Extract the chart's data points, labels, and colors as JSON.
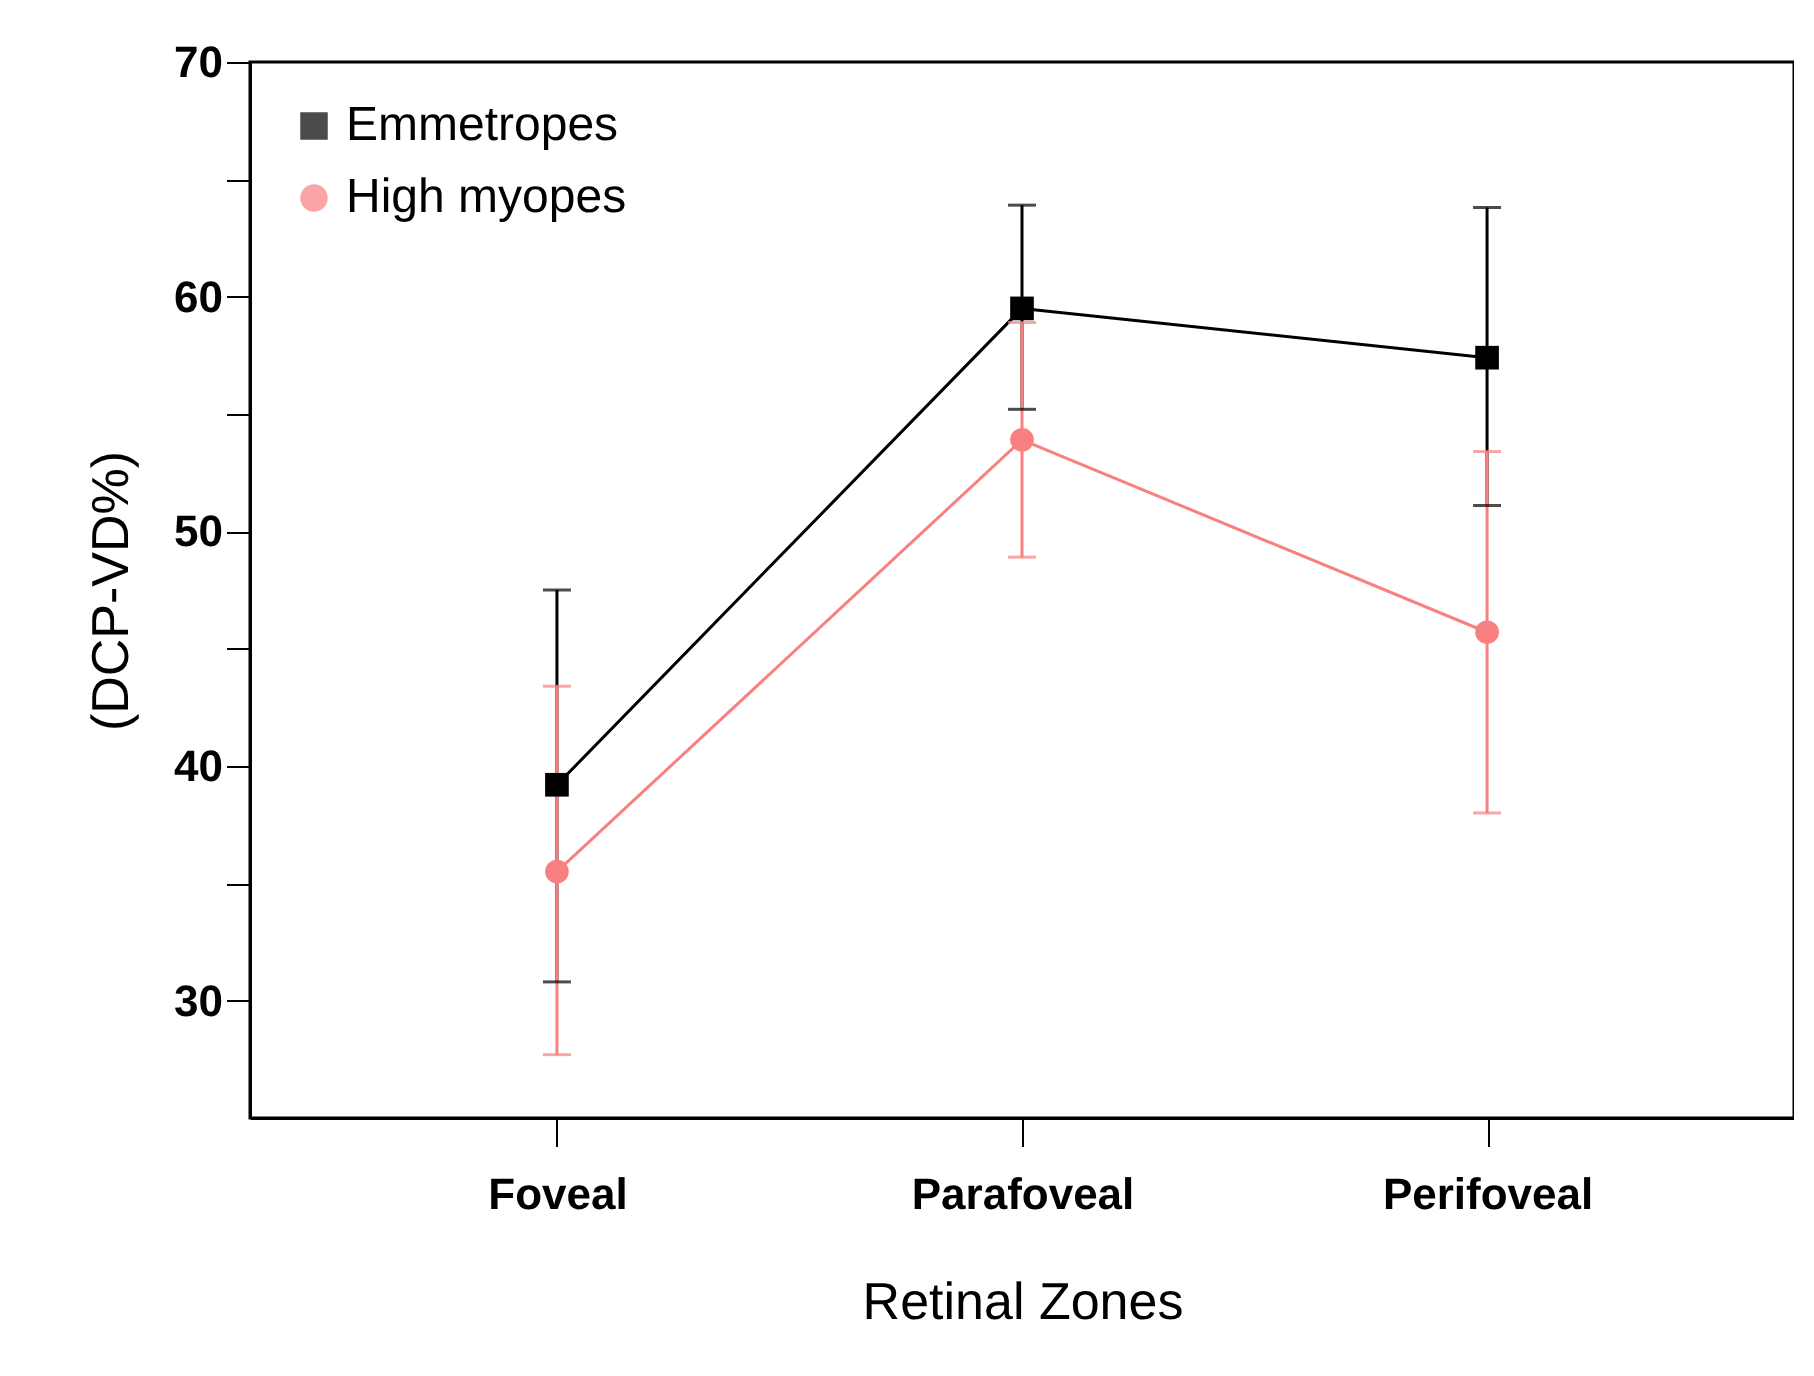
{
  "chart_data": {
    "type": "line",
    "xlabel": "Retinal Zones",
    "ylabel": "(DCP-VD%)",
    "categories": [
      "Foveal",
      "Parafoveal",
      "Perifoveal"
    ],
    "series": [
      {
        "name": "Emmetropes",
        "color": "#000000",
        "marker": "square",
        "values": [
          39.2,
          59.5,
          57.4
        ],
        "errors": [
          [
            30.8,
            47.5
          ],
          [
            55.2,
            63.9
          ],
          [
            51.1,
            63.8
          ]
        ]
      },
      {
        "name": "High myopes",
        "color": "#f88080",
        "marker": "circle",
        "values": [
          35.5,
          53.9,
          45.7
        ],
        "errors": [
          [
            27.7,
            43.4
          ],
          [
            48.9,
            58.9
          ],
          [
            38.0,
            53.4
          ]
        ]
      }
    ],
    "ylim": [
      25,
      70
    ],
    "yticks": [
      30,
      {
        "value": 35,
        "label": null
      },
      40,
      {
        "value": 45,
        "label": null
      },
      50,
      {
        "value": 55,
        "label": null
      },
      60,
      {
        "value": 65,
        "label": null
      },
      70
    ],
    "grid": false,
    "legend": "top left",
    "line_style": "solid"
  }
}
